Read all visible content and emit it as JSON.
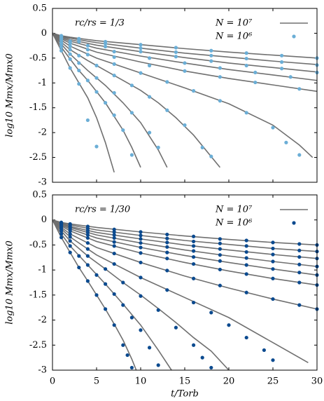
{
  "chart_data": [
    {
      "type": "line",
      "annotation": "rc/rs = 1/3",
      "ylabel": "log10 Mmx/Mmx0",
      "xlim": [
        0,
        30
      ],
      "ylim": [
        -3,
        0.5
      ],
      "xticks": [
        0,
        5,
        10,
        15,
        20,
        25,
        30
      ],
      "yticks": [
        0.5,
        0,
        -0.5,
        -1,
        -1.5,
        -2,
        -2.5,
        -3
      ],
      "lines": {
        "name": "N = 10⁷",
        "color": "#707070",
        "curves": [
          {
            "x": [
              0,
              1,
              2,
              5,
              10,
              15,
              20,
              25,
              30
            ],
            "values": [
              0,
              -0.05,
              -0.08,
              -0.15,
              -0.23,
              -0.31,
              -0.38,
              -0.44,
              -0.5
            ]
          },
          {
            "x": [
              0,
              1,
              2,
              5,
              10,
              15,
              20,
              25,
              30
            ],
            "values": [
              0,
              -0.06,
              -0.1,
              -0.19,
              -0.3,
              -0.4,
              -0.48,
              -0.56,
              -0.63
            ]
          },
          {
            "x": [
              0,
              1,
              2,
              5,
              10,
              15,
              20,
              25,
              30
            ],
            "values": [
              0,
              -0.07,
              -0.13,
              -0.24,
              -0.37,
              -0.49,
              -0.6,
              -0.69,
              -0.78
            ]
          },
          {
            "x": [
              0,
              1,
              2,
              5,
              10,
              15,
              20,
              25,
              30
            ],
            "values": [
              0,
              -0.09,
              -0.16,
              -0.3,
              -0.46,
              -0.6,
              -0.73,
              -0.84,
              -0.95
            ]
          },
          {
            "x": [
              0,
              1,
              2,
              5,
              10,
              15,
              20,
              25,
              30
            ],
            "values": [
              0,
              -0.11,
              -0.2,
              -0.38,
              -0.58,
              -0.76,
              -0.91,
              -1.04,
              -1.17
            ]
          },
          {
            "x": [
              0,
              1,
              2,
              5,
              10,
              15,
              20,
              25,
              28,
              29.5
            ],
            "values": [
              0,
              -0.14,
              -0.26,
              -0.5,
              -0.8,
              -1.1,
              -1.42,
              -1.85,
              -2.25,
              -2.5
            ]
          },
          {
            "x": [
              0,
              1,
              2,
              4,
              6,
              8,
              10,
              12,
              14,
              16,
              19
            ],
            "values": [
              0,
              -0.18,
              -0.33,
              -0.55,
              -0.75,
              -0.95,
              -1.15,
              -1.4,
              -1.7,
              -2.05,
              -2.7
            ]
          },
          {
            "x": [
              0,
              1,
              2,
              4,
              6,
              8,
              10,
              12,
              13
            ],
            "values": [
              0,
              -0.22,
              -0.42,
              -0.75,
              -1.05,
              -1.4,
              -1.8,
              -2.35,
              -2.7
            ]
          },
          {
            "x": [
              0,
              1,
              2,
              3,
              4,
              6,
              8,
              9,
              10
            ],
            "values": [
              0,
              -0.28,
              -0.52,
              -0.75,
              -0.95,
              -1.4,
              -1.95,
              -2.3,
              -2.7
            ]
          },
          {
            "x": [
              0,
              1,
              2,
              3,
              4,
              5,
              6,
              7
            ],
            "values": [
              0,
              -0.35,
              -0.7,
              -1.0,
              -1.3,
              -1.7,
              -2.2,
              -2.8
            ]
          }
        ]
      },
      "points": {
        "name": "N = 10⁶",
        "color": "#6baed6",
        "x": [
          1,
          3,
          6,
          10,
          14,
          18,
          22,
          26,
          30,
          1,
          3,
          6,
          10,
          14,
          18,
          22,
          26,
          30,
          1,
          3,
          6,
          10,
          14,
          18,
          22,
          26,
          30,
          1,
          2,
          4,
          7,
          11,
          15,
          19,
          23,
          27,
          1,
          2,
          4,
          7,
          11,
          15,
          19,
          23,
          28,
          1,
          2,
          4,
          7,
          10,
          13,
          16,
          19,
          22,
          25,
          26.5,
          28,
          1,
          2,
          3,
          5,
          7,
          9,
          11,
          13,
          15,
          17,
          18,
          1,
          2,
          3,
          5,
          7,
          9,
          11,
          12,
          1,
          2,
          3,
          4,
          5,
          6,
          7,
          8,
          9,
          1,
          2,
          3,
          4,
          5
        ],
        "values": [
          -0.05,
          -0.11,
          -0.17,
          -0.23,
          -0.29,
          -0.35,
          -0.4,
          -0.45,
          -0.5,
          -0.06,
          -0.13,
          -0.21,
          -0.3,
          -0.38,
          -0.45,
          -0.51,
          -0.58,
          -0.64,
          -0.07,
          -0.17,
          -0.27,
          -0.37,
          -0.47,
          -0.56,
          -0.65,
          -0.71,
          -0.79,
          -0.09,
          -0.16,
          -0.25,
          -0.37,
          -0.5,
          -0.6,
          -0.7,
          -0.79,
          -0.88,
          -0.11,
          -0.2,
          -0.33,
          -0.48,
          -0.65,
          -0.76,
          -0.88,
          -0.99,
          -1.12,
          -0.14,
          -0.26,
          -0.43,
          -0.62,
          -0.8,
          -0.98,
          -1.16,
          -1.36,
          -1.6,
          -1.9,
          -2.2,
          -2.45,
          -0.18,
          -0.33,
          -0.45,
          -0.65,
          -0.85,
          -1.05,
          -1.28,
          -1.55,
          -1.85,
          -2.3,
          -2.48,
          -0.22,
          -0.42,
          -0.6,
          -0.9,
          -1.2,
          -1.6,
          -2.0,
          -2.3,
          -0.28,
          -0.52,
          -0.75,
          -0.95,
          -1.18,
          -1.4,
          -1.65,
          -1.95,
          -2.45,
          -0.35,
          -0.7,
          -1.02,
          -1.75,
          -2.28
        ]
      }
    },
    {
      "type": "line",
      "annotation": "rc/rs = 1/30",
      "ylabel": "log10 Mmx/Mmx0",
      "xlabel": "t/Torb",
      "xlim": [
        0,
        30
      ],
      "ylim": [
        -3,
        0.5
      ],
      "xticks": [
        0,
        5,
        10,
        15,
        20,
        25,
        30
      ],
      "yticks": [
        0.5,
        0,
        -0.5,
        -1,
        -1.5,
        -2,
        -2.5,
        -3
      ],
      "lines": {
        "name": "N = 10⁷",
        "color": "#707070",
        "curves": [
          {
            "x": [
              0,
              1,
              2,
              5,
              10,
              15,
              20,
              25,
              30
            ],
            "values": [
              0,
              -0.05,
              -0.08,
              -0.15,
              -0.24,
              -0.32,
              -0.39,
              -0.45,
              -0.5
            ]
          },
          {
            "x": [
              0,
              1,
              2,
              5,
              10,
              15,
              20,
              25,
              30
            ],
            "values": [
              0,
              -0.06,
              -0.1,
              -0.2,
              -0.31,
              -0.41,
              -0.49,
              -0.57,
              -0.63
            ]
          },
          {
            "x": [
              0,
              1,
              2,
              5,
              10,
              15,
              20,
              25,
              30
            ],
            "values": [
              0,
              -0.07,
              -0.13,
              -0.25,
              -0.38,
              -0.5,
              -0.6,
              -0.69,
              -0.77
            ]
          },
          {
            "x": [
              0,
              1,
              2,
              5,
              10,
              15,
              20,
              25,
              30
            ],
            "values": [
              0,
              -0.08,
              -0.15,
              -0.3,
              -0.46,
              -0.6,
              -0.72,
              -0.83,
              -0.93
            ]
          },
          {
            "x": [
              0,
              1,
              2,
              5,
              10,
              15,
              20,
              25,
              30
            ],
            "values": [
              0,
              -0.1,
              -0.18,
              -0.36,
              -0.55,
              -0.71,
              -0.85,
              -0.98,
              -1.1
            ]
          },
          {
            "x": [
              0,
              1,
              2,
              5,
              10,
              15,
              20,
              25,
              30
            ],
            "values": [
              0,
              -0.12,
              -0.22,
              -0.43,
              -0.66,
              -0.85,
              -1.02,
              -1.17,
              -1.3
            ]
          },
          {
            "x": [
              0,
              1,
              2,
              5,
              10,
              15,
              20,
              25,
              30
            ],
            "values": [
              0,
              -0.15,
              -0.28,
              -0.55,
              -0.85,
              -1.12,
              -1.36,
              -1.58,
              -1.78
            ]
          },
          {
            "x": [
              0,
              1,
              2,
              5,
              10,
              15,
              20,
              25,
              29
            ],
            "values": [
              0,
              -0.18,
              -0.34,
              -0.7,
              -1.15,
              -1.55,
              -1.95,
              -2.45,
              -2.85
            ]
          },
          {
            "x": [
              0,
              1,
              2,
              4,
              6,
              8,
              10,
              12,
              14,
              16,
              18,
              20
            ],
            "values": [
              0,
              -0.22,
              -0.42,
              -0.72,
              -0.98,
              -1.25,
              -1.5,
              -1.77,
              -2.05,
              -2.35,
              -2.62,
              -3.0
            ]
          },
          {
            "x": [
              0,
              1,
              2,
              4,
              6,
              8,
              10,
              12,
              13.5
            ],
            "values": [
              0,
              -0.28,
              -0.52,
              -0.9,
              -1.28,
              -1.68,
              -2.1,
              -2.6,
              -3.0
            ]
          },
          {
            "x": [
              0,
              1,
              2,
              3,
              4,
              5,
              6,
              7,
              8,
              9,
              9.5
            ],
            "values": [
              0,
              -0.35,
              -0.65,
              -0.95,
              -1.22,
              -1.5,
              -1.78,
              -2.08,
              -2.4,
              -2.78,
              -3.0
            ]
          }
        ]
      },
      "points": {
        "name": "N = 10⁶",
        "color": "#0b4a8f",
        "x": [
          1,
          2,
          4,
          7,
          10,
          13,
          16,
          19,
          22,
          25,
          28,
          30,
          1,
          2,
          4,
          7,
          10,
          13,
          16,
          19,
          22,
          25,
          28,
          30,
          1,
          2,
          4,
          7,
          10,
          13,
          16,
          19,
          22,
          25,
          28,
          30,
          1,
          2,
          4,
          7,
          10,
          13,
          16,
          19,
          22,
          25,
          28,
          30,
          1,
          2,
          4,
          7,
          10,
          13,
          16,
          19,
          22,
          25,
          28,
          30,
          1,
          2,
          4,
          7,
          10,
          13,
          16,
          19,
          22,
          25,
          28,
          30,
          1,
          2,
          4,
          7,
          10,
          13,
          16,
          19,
          22,
          25,
          28,
          30,
          1,
          2,
          4,
          7,
          10,
          13,
          16,
          18,
          20,
          22,
          24,
          25,
          1,
          2,
          4,
          6,
          8,
          10,
          12,
          14,
          16,
          17,
          18,
          1,
          2,
          3,
          4,
          5,
          6,
          7,
          8,
          9,
          10,
          11,
          12,
          1,
          2,
          3,
          4,
          5,
          6,
          7,
          8,
          8.5,
          9
        ],
        "values": [
          -0.05,
          -0.08,
          -0.13,
          -0.19,
          -0.24,
          -0.29,
          -0.33,
          -0.38,
          -0.41,
          -0.45,
          -0.48,
          -0.5,
          -0.06,
          -0.1,
          -0.17,
          -0.24,
          -0.31,
          -0.37,
          -0.43,
          -0.47,
          -0.52,
          -0.57,
          -0.61,
          -0.63,
          -0.07,
          -0.13,
          -0.21,
          -0.3,
          -0.38,
          -0.45,
          -0.52,
          -0.58,
          -0.64,
          -0.69,
          -0.74,
          -0.77,
          -0.08,
          -0.15,
          -0.25,
          -0.36,
          -0.46,
          -0.54,
          -0.62,
          -0.7,
          -0.76,
          -0.83,
          -0.89,
          -0.93,
          -0.1,
          -0.18,
          -0.3,
          -0.44,
          -0.55,
          -0.65,
          -0.74,
          -0.82,
          -0.9,
          -0.98,
          -1.05,
          -1.1,
          -0.12,
          -0.22,
          -0.36,
          -0.52,
          -0.66,
          -0.77,
          -0.88,
          -0.99,
          -1.08,
          -1.17,
          -1.25,
          -1.3,
          -0.15,
          -0.28,
          -0.46,
          -0.67,
          -0.85,
          -1.01,
          -1.17,
          -1.31,
          -1.45,
          -1.58,
          -1.7,
          -1.78,
          -0.18,
          -0.34,
          -0.58,
          -0.88,
          -1.15,
          -1.4,
          -1.65,
          -1.85,
          -2.1,
          -2.35,
          -2.6,
          -2.8,
          -0.22,
          -0.42,
          -0.72,
          -0.98,
          -1.25,
          -1.52,
          -1.8,
          -2.15,
          -2.5,
          -2.75,
          -2.95,
          -0.28,
          -0.52,
          -0.72,
          -0.9,
          -1.1,
          -1.28,
          -1.48,
          -1.7,
          -1.95,
          -2.2,
          -2.55,
          -2.9,
          -0.35,
          -0.65,
          -0.95,
          -1.22,
          -1.5,
          -1.78,
          -2.1,
          -2.5,
          -2.7,
          -2.95
        ]
      }
    }
  ]
}
